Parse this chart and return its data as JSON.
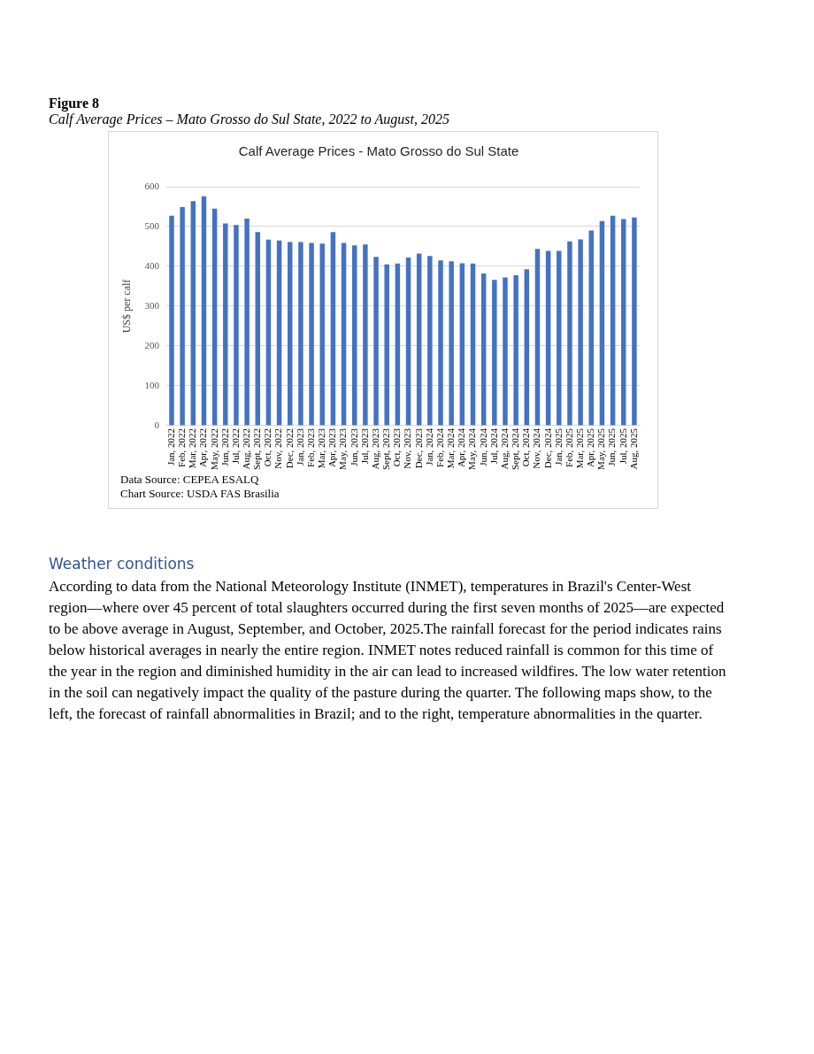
{
  "chart_data": {
    "type": "bar",
    "title": "Calf Average Prices - Mato Grosso do Sul State",
    "ylabel": "US$ per calf",
    "categories": [
      "Jan, 2022",
      "Feb, 2022",
      "Mar, 2022",
      "Apr, 2022",
      "May, 2022",
      "Jun, 2022",
      "Jul, 2022",
      "Aug, 2022",
      "Sept, 2022",
      "Oct, 2022",
      "Nov, 2022",
      "Dec, 2022",
      "Jan, 2023",
      "Feb, 2023",
      "Mar, 2023",
      "Apr, 2023",
      "May, 2023",
      "Jun, 2023",
      "Jul, 2023",
      "Aug, 2023",
      "Sept, 2023",
      "Oct, 2023",
      "Nov, 2023",
      "Dec, 2023",
      "Jan, 2024",
      "Feb, 2024",
      "Mar, 2024",
      "Apr, 2024",
      "May, 2024",
      "Jun, 2024",
      "Jul, 2024",
      "Aug, 2024",
      "Sept, 2024",
      "Oct, 2024",
      "Nov, 2024",
      "Dec, 2024",
      "Jan, 2025",
      "Feb, 2025",
      "Mar, 2025",
      "Apr, 2025",
      "May, 2025",
      "Jun, 2025",
      "Jul, 2025",
      "Aug, 2025"
    ],
    "values": [
      527,
      549,
      564,
      576,
      545,
      508,
      504,
      520,
      486,
      467,
      465,
      461,
      461,
      459,
      457,
      486,
      459,
      453,
      455,
      424,
      405,
      407,
      422,
      432,
      426,
      415,
      413,
      408,
      407,
      382,
      366,
      372,
      378,
      393,
      444,
      439,
      439,
      463,
      468,
      490,
      514,
      527,
      519,
      523
    ],
    "color": "#4472c4",
    "ylim": [
      0,
      600
    ],
    "yticks": [
      0,
      100,
      200,
      300,
      400,
      500,
      600
    ],
    "grid": "y",
    "annotations": [
      "Figure 8",
      "Calf Average Prices – Mato Grosso do Sul State, 2022 to August, 2025",
      "Data Source: CEPEA ESALQ",
      "Chart Source: USDA FAS Brasilia",
      "Weather conditions",
      "According to data from the National Meteorology Institute (INMET), temperatures in Brazil's Center-West region—where over 45 percent of total slaughters occurred during the first seven months of 2025—are expected to be above average in August, September, and October, 2025.The rainfall forecast for the period indicates rains below historical averages in nearly the entire region. INMET notes reduced rainfall is common for this time of the year in the region and diminished humidity in the air can lead to increased wildfires. The low water retention in the soil can negatively impact the quality of the pasture during the quarter. The following maps show, to the left, the forecast of rainfall abnormalities in Brazil; and to the right, temperature abnormalities in the quarter."
    ]
  }
}
